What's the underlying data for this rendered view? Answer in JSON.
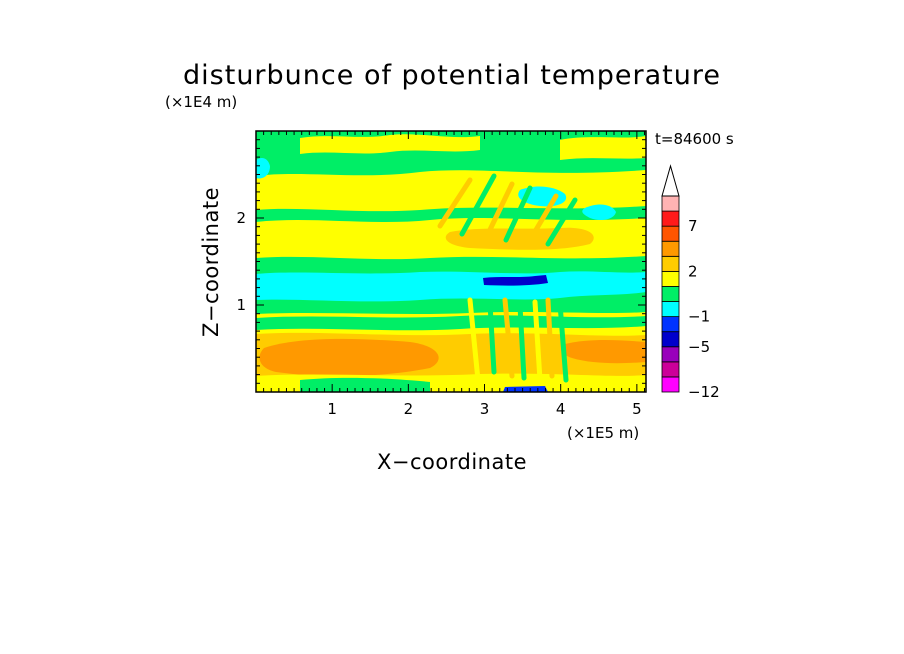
{
  "chart_data": {
    "type": "heatmap",
    "title": "disturbunce of potential temperature",
    "time_label": "t=84600 s",
    "xlabel": "X−coordinate",
    "ylabel": "Z−coordinate",
    "x_unit": "(×1E5 m)",
    "y_unit": "(×1E4 m)",
    "xlim": [
      0,
      5.12
    ],
    "ylim": [
      0,
      3.0
    ],
    "x_ticks": [
      "1",
      "2",
      "3",
      "4",
      "5"
    ],
    "y_ticks": [
      "1",
      "2"
    ],
    "colorbar": {
      "levels": [
        -12,
        -10,
        -8,
        -5,
        -3,
        -1,
        0,
        1,
        2,
        4,
        5,
        7,
        9,
        11
      ],
      "labels": [
        "−12",
        "−5",
        "−1",
        "2",
        "7"
      ],
      "colors": [
        "#ff00ff",
        "#cc0099",
        "#9900bb",
        "#0000cc",
        "#0033ff",
        "#00ffff",
        "#00ee66",
        "#ffff00",
        "#ffcc00",
        "#ff9900",
        "#ff5500",
        "#ff1a1a",
        "#ffb3b3"
      ],
      "extend": "max"
    },
    "colors": {
      "near_zero_negative": "#00ee66",
      "near_zero_positive": "#ffff00",
      "warm": "#ffcc00",
      "warmer": "#ff9900",
      "cool": "#00ffff",
      "cold": "#0000cc"
    }
  }
}
